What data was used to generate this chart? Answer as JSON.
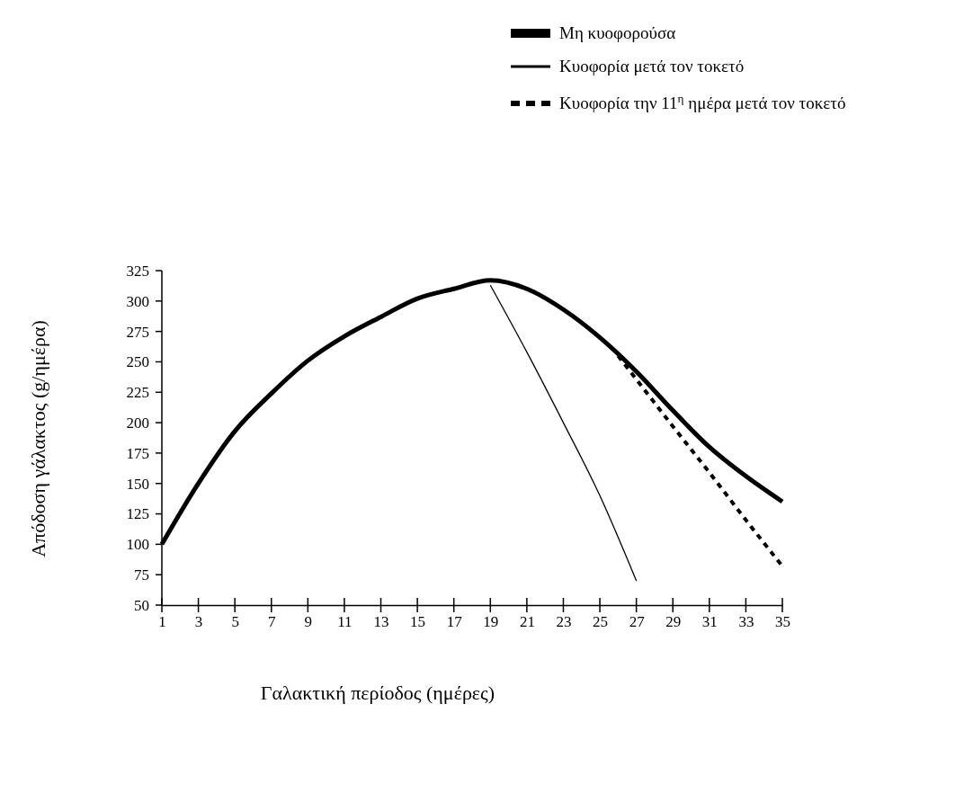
{
  "chart_data": {
    "type": "line",
    "xlabel": "Γαλακτική περίοδος (ημέρες)",
    "ylabel": "Απόδοση γάλακτος (g/ημέρα)",
    "xlim": [
      1,
      35
    ],
    "xticks": [
      1,
      3,
      5,
      7,
      9,
      11,
      13,
      15,
      17,
      19,
      21,
      23,
      25,
      27,
      29,
      31,
      33,
      35
    ],
    "ylim": [
      50,
      325
    ],
    "yticks": [
      50,
      75,
      100,
      125,
      150,
      175,
      200,
      225,
      250,
      275,
      300,
      325
    ],
    "grid": false,
    "legend": "top right",
    "series": [
      {
        "name": "Μη κυοφορούσα",
        "color": "#000000",
        "line_style": "solid",
        "x": [
          1,
          3,
          5,
          7,
          9,
          11,
          13,
          15,
          17,
          19,
          21,
          23,
          25,
          27,
          29,
          31,
          33,
          35
        ],
        "values": [
          100,
          150,
          193,
          224,
          251,
          271,
          287,
          302,
          310,
          317,
          310,
          293,
          270,
          242,
          210,
          180,
          156,
          135
        ]
      },
      {
        "name": "Κυοφορία μετά τον τοκετό",
        "color": "#000000",
        "line_style": "solid",
        "x": [
          19,
          21,
          23,
          25,
          27
        ],
        "values": [
          313,
          258,
          200,
          140,
          70
        ]
      },
      {
        "name": "Κυοφορία την 11$^{η}$ ημέρα μετά τον τοκετό",
        "color": "#000000",
        "line_style": "dotted",
        "x": [
          26,
          29,
          31,
          33,
          35
        ],
        "values": [
          255,
          197,
          159,
          120,
          82
        ]
      }
    ]
  }
}
